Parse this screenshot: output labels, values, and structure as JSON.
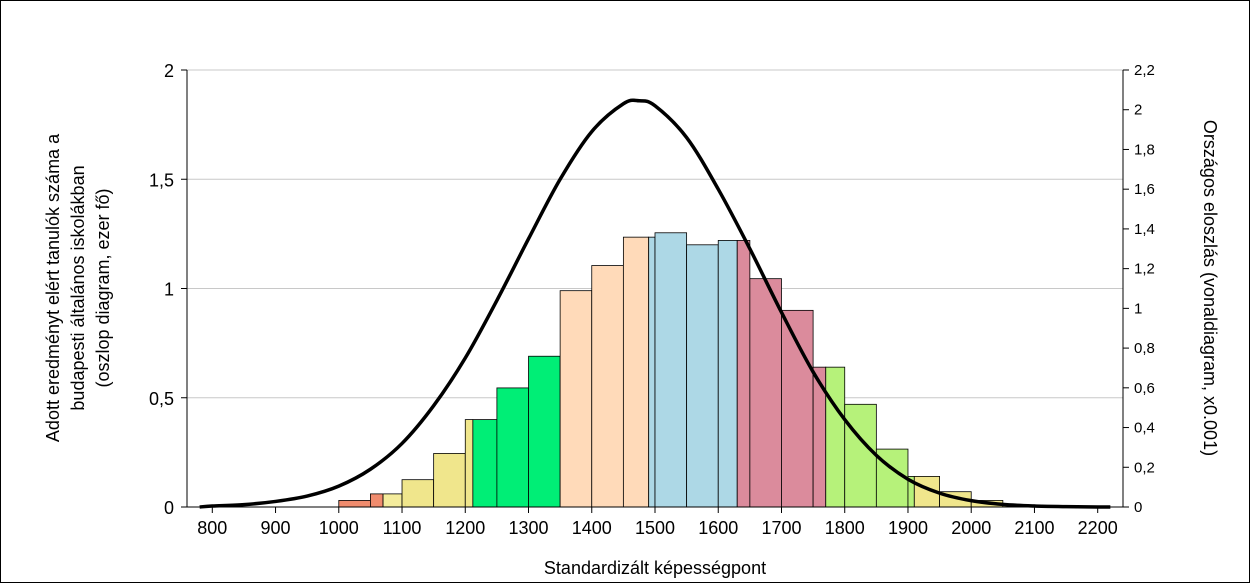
{
  "chart_data": {
    "type": "bar",
    "xlabel": "Standardizált képességpont",
    "ylabel_lines": [
      "Adott eredményt elért tanulók száma a",
      "budapesti általános iskolákban",
      "(oszlop diagram, ezer fő)"
    ],
    "y2label": "Országos eloszlás (vonaldiagram, x0.001)",
    "xlim": [
      760,
      2240
    ],
    "ylim": [
      0,
      2
    ],
    "y2lim": [
      0,
      2.2
    ],
    "x_ticks": [
      800,
      900,
      1000,
      1100,
      1200,
      1300,
      1400,
      1500,
      1600,
      1700,
      1800,
      1900,
      2000,
      2100,
      2200
    ],
    "y_ticks": [
      "0",
      "0,5",
      "1",
      "1,5",
      "2"
    ],
    "y_tick_values": [
      0,
      0.5,
      1,
      1.5,
      2
    ],
    "y2_ticks": [
      "0",
      "0,2",
      "0,4",
      "0,6",
      "0,8",
      "1",
      "1,2",
      "1,4",
      "1,6",
      "1,8",
      "2",
      "2,2"
    ],
    "y2_tick_values": [
      0,
      0.2,
      0.4,
      0.6,
      0.8,
      1.0,
      1.2,
      1.4,
      1.6,
      1.8,
      2.0,
      2.2
    ],
    "gridlines": "horizontal",
    "bars": [
      {
        "x0": 1000,
        "x1": 1050,
        "value": 0.03,
        "color": "#f08c6e"
      },
      {
        "x0": 1050,
        "x1": 1070,
        "value": 0.06,
        "color": "#f08c6e"
      },
      {
        "x0": 1070,
        "x1": 1100,
        "value": 0.06,
        "color": "#f4ec9c"
      },
      {
        "x0": 1100,
        "x1": 1150,
        "value": 0.125,
        "color": "#f0e68c"
      },
      {
        "x0": 1150,
        "x1": 1200,
        "value": 0.245,
        "color": "#f0e68c"
      },
      {
        "x0": 1200,
        "x1": 1212,
        "value": 0.4,
        "color": "#f0e68c"
      },
      {
        "x0": 1212,
        "x1": 1250,
        "value": 0.4,
        "color": "#00ee76"
      },
      {
        "x0": 1250,
        "x1": 1300,
        "value": 0.545,
        "color": "#00ee76"
      },
      {
        "x0": 1300,
        "x1": 1350,
        "value": 0.69,
        "color": "#00ee76"
      },
      {
        "x0": 1350,
        "x1": 1400,
        "value": 0.99,
        "color": "#ffdab9"
      },
      {
        "x0": 1400,
        "x1": 1450,
        "value": 1.105,
        "color": "#ffdab9"
      },
      {
        "x0": 1450,
        "x1": 1490,
        "value": 1.235,
        "color": "#ffdab9"
      },
      {
        "x0": 1490,
        "x1": 1500,
        "value": 1.235,
        "color": "#add8e6"
      },
      {
        "x0": 1500,
        "x1": 1550,
        "value": 1.255,
        "color": "#add8e6"
      },
      {
        "x0": 1550,
        "x1": 1600,
        "value": 1.2,
        "color": "#add8e6"
      },
      {
        "x0": 1600,
        "x1": 1630,
        "value": 1.22,
        "color": "#add8e6"
      },
      {
        "x0": 1630,
        "x1": 1650,
        "value": 1.22,
        "color": "#db8b9c"
      },
      {
        "x0": 1650,
        "x1": 1700,
        "value": 1.045,
        "color": "#db8b9c"
      },
      {
        "x0": 1700,
        "x1": 1750,
        "value": 0.9,
        "color": "#db8b9c"
      },
      {
        "x0": 1750,
        "x1": 1770,
        "value": 0.64,
        "color": "#db8b9c"
      },
      {
        "x0": 1770,
        "x1": 1800,
        "value": 0.64,
        "color": "#b6f27a"
      },
      {
        "x0": 1800,
        "x1": 1850,
        "value": 0.47,
        "color": "#b6f27a"
      },
      {
        "x0": 1850,
        "x1": 1900,
        "value": 0.265,
        "color": "#b6f27a"
      },
      {
        "x0": 1900,
        "x1": 1910,
        "value": 0.14,
        "color": "#b6f27a"
      },
      {
        "x0": 1910,
        "x1": 1950,
        "value": 0.14,
        "color": "#f0e68c"
      },
      {
        "x0": 1950,
        "x1": 2000,
        "value": 0.07,
        "color": "#f0e68c"
      },
      {
        "x0": 2000,
        "x1": 2050,
        "value": 0.03,
        "color": "#f0e68c"
      },
      {
        "x0": 2050,
        "x1": 2100,
        "value": 0.01,
        "color": "#f0e68c"
      }
    ],
    "line": {
      "axis": "right",
      "color": "#000000",
      "x": [
        780,
        800,
        850,
        900,
        950,
        1000,
        1050,
        1100,
        1150,
        1200,
        1250,
        1300,
        1350,
        1400,
        1450,
        1475,
        1500,
        1550,
        1600,
        1650,
        1700,
        1750,
        1800,
        1850,
        1900,
        1950,
        2000,
        2050,
        2100,
        2150,
        2200,
        2220
      ],
      "y": [
        0.0,
        0.005,
        0.012,
        0.028,
        0.055,
        0.105,
        0.19,
        0.32,
        0.51,
        0.75,
        1.04,
        1.35,
        1.65,
        1.89,
        2.03,
        2.045,
        2.02,
        1.86,
        1.6,
        1.3,
        0.98,
        0.68,
        0.44,
        0.26,
        0.14,
        0.07,
        0.032,
        0.013,
        0.005,
        0.002,
        0.0,
        0.0
      ]
    }
  }
}
